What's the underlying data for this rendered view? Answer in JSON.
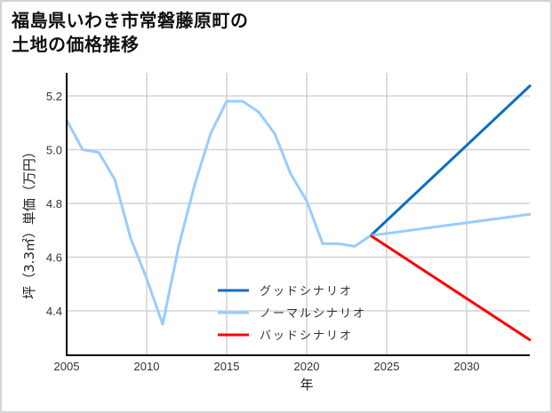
{
  "title_line1": "福島県いわき市常磐藤原町の",
  "title_line2": "土地の価格推移",
  "chart_data": {
    "type": "line",
    "title": "福島県いわき市常磐藤原町の土地の価格推移",
    "xlabel": "年",
    "ylabel": "坪（3.3㎡）単価（万円）",
    "xlim": [
      2005,
      2034
    ],
    "ylim": [
      4.27,
      5.27
    ],
    "x_ticks": [
      2005,
      2010,
      2015,
      2020,
      2025,
      2030
    ],
    "y_ticks": [
      4.4,
      4.6,
      4.8,
      5.0,
      5.2
    ],
    "grid": true,
    "legend_position": "lower center",
    "historical": {
      "x": [
        2005,
        2006,
        2007,
        2008,
        2009,
        2010,
        2011,
        2012,
        2013,
        2014,
        2015,
        2016,
        2017,
        2018,
        2019,
        2020,
        2021,
        2022,
        2023,
        2024
      ],
      "values": [
        5.11,
        5.0,
        4.99,
        4.89,
        4.67,
        4.52,
        4.35,
        4.64,
        4.87,
        5.06,
        5.18,
        5.18,
        5.14,
        5.06,
        4.91,
        4.81,
        4.65,
        4.65,
        4.64,
        4.68
      ]
    },
    "series": [
      {
        "name": "グッドシナリオ",
        "color": "#0a6fc2",
        "x": [
          2024,
          2034
        ],
        "values": [
          4.68,
          5.24
        ]
      },
      {
        "name": "ノーマルシナリオ",
        "color": "#99ccff",
        "x": [
          2024,
          2034
        ],
        "values": [
          4.68,
          4.76
        ]
      },
      {
        "name": "バッドシナリオ",
        "color": "#ff0000",
        "x": [
          2024,
          2034
        ],
        "values": [
          4.68,
          4.29
        ]
      }
    ]
  }
}
